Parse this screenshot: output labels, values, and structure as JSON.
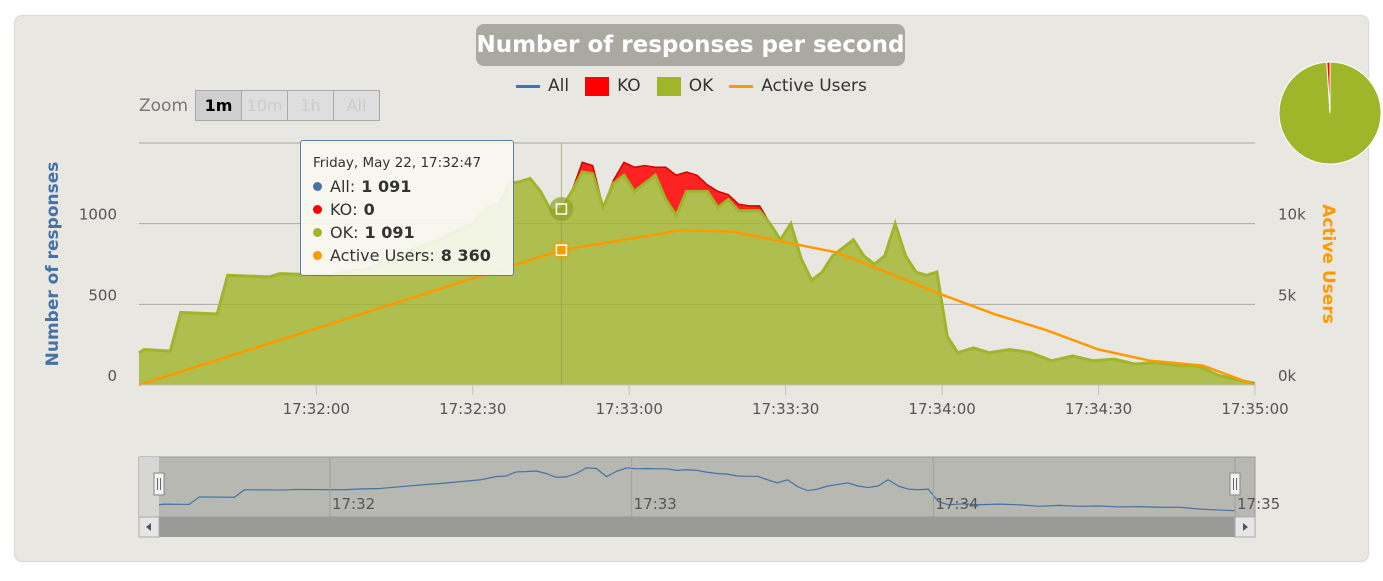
{
  "title": "Number of responses per second",
  "legend": [
    {
      "label": "All",
      "color": "#4572a7",
      "kind": "line"
    },
    {
      "label": "KO",
      "color": "#ff0000",
      "kind": "box"
    },
    {
      "label": "OK",
      "color": "#9fb52a",
      "kind": "box"
    },
    {
      "label": "Active Users",
      "color": "#ff9900",
      "kind": "line"
    }
  ],
  "zoom": {
    "label": "Zoom",
    "buttons": [
      "1m",
      "10m",
      "1h",
      "All"
    ],
    "active": "1m"
  },
  "tooltip": {
    "header": "Friday, May 22, 17:32:47",
    "rows": [
      {
        "name": "All",
        "value": "1 091",
        "color": "#4572a7"
      },
      {
        "name": "KO",
        "value": "0",
        "color": "#ff0000"
      },
      {
        "name": "OK",
        "value": "1 091",
        "color": "#9fb52a"
      },
      {
        "name": "Active Users",
        "value": "8 360",
        "color": "#ff9900"
      }
    ]
  },
  "navigator": {
    "labels": [
      "17:32",
      "17:33",
      "17:34",
      "17:35"
    ]
  },
  "colors": {
    "ok": "#9fb52a",
    "ko": "#ff0000",
    "all": "#4572a7",
    "users": "#ff9900",
    "pie_ok": "#9fb52a",
    "pie_ko": "#ff0000"
  },
  "chart_data": {
    "type": "area",
    "ylabel": "Number of responses",
    "y2label": "Active Users",
    "ylim": [
      0,
      1500
    ],
    "y2lim": [
      0,
      15000
    ],
    "yticks": [
      "0",
      "500",
      "1000"
    ],
    "y2ticks": [
      "0k",
      "5k",
      "10k"
    ],
    "xlim": [
      "17:31:26",
      "17:35:00"
    ],
    "xticks": [
      "17:32:00",
      "17:32:30",
      "17:33:00",
      "17:33:30",
      "17:34:00",
      "17:34:30",
      "17:35:00"
    ],
    "x": [
      "17:31:26",
      "17:31:27",
      "17:31:32",
      "17:31:34",
      "17:31:41",
      "17:31:43",
      "17:31:51",
      "17:31:53",
      "17:32:03",
      "17:32:05",
      "17:32:10",
      "17:32:12",
      "17:32:20",
      "17:32:22",
      "17:32:30",
      "17:32:33",
      "17:32:35",
      "17:32:37",
      "17:32:39",
      "17:32:41",
      "17:32:43",
      "17:32:45",
      "17:32:47",
      "17:32:49",
      "17:32:51",
      "17:32:53",
      "17:32:55",
      "17:32:57",
      "17:32:59",
      "17:33:01",
      "17:33:03",
      "17:33:05",
      "17:33:07",
      "17:33:09",
      "17:33:11",
      "17:33:13",
      "17:33:15",
      "17:33:17",
      "17:33:19",
      "17:33:21",
      "17:33:23",
      "17:33:25",
      "17:33:27",
      "17:33:29",
      "17:33:31",
      "17:33:33",
      "17:33:35",
      "17:33:37",
      "17:33:39",
      "17:33:41",
      "17:33:43",
      "17:33:45",
      "17:33:47",
      "17:33:49",
      "17:33:51",
      "17:33:53",
      "17:33:55",
      "17:33:57",
      "17:33:59",
      "17:34:01",
      "17:34:03",
      "17:34:06",
      "17:34:09",
      "17:34:13",
      "17:34:17",
      "17:34:21",
      "17:34:25",
      "17:34:29",
      "17:34:33",
      "17:34:37",
      "17:34:41",
      "17:34:45",
      "17:34:49",
      "17:34:53",
      "17:34:57",
      "17:35:00"
    ],
    "series": [
      {
        "name": "OK",
        "values": [
          200,
          220,
          210,
          450,
          440,
          680,
          670,
          690,
          680,
          700,
          720,
          750,
          860,
          880,
          1000,
          1100,
          1120,
          1250,
          1260,
          1280,
          1200,
          1080,
          1091,
          1200,
          1320,
          1310,
          1100,
          1250,
          1300,
          1200,
          1250,
          1300,
          1150,
          1050,
          1200,
          1200,
          1200,
          1100,
          1150,
          1080,
          1080,
          1080,
          1000,
          900,
          1000,
          780,
          650,
          700,
          800,
          850,
          900,
          800,
          750,
          800,
          1000,
          800,
          700,
          680,
          700,
          300,
          200,
          230,
          200,
          220,
          200,
          150,
          180,
          150,
          160,
          130,
          140,
          120,
          120,
          60,
          30,
          10
        ]
      },
      {
        "name": "KO",
        "values": [
          0,
          0,
          0,
          0,
          0,
          0,
          0,
          0,
          0,
          0,
          0,
          0,
          0,
          0,
          0,
          0,
          0,
          0,
          0,
          0,
          0,
          0,
          0,
          0,
          60,
          50,
          0,
          20,
          80,
          150,
          110,
          50,
          200,
          250,
          120,
          100,
          40,
          100,
          30,
          40,
          30,
          30,
          0,
          0,
          0,
          0,
          0,
          0,
          0,
          0,
          0,
          0,
          0,
          0,
          0,
          0,
          0,
          0,
          0,
          0,
          0,
          0,
          0,
          0,
          0,
          0,
          0,
          0,
          0,
          0,
          0,
          0,
          0,
          0,
          0,
          0
        ]
      },
      {
        "name": "Active Users",
        "x": [
          "17:31:26",
          "17:32:47",
          "17:33:10",
          "17:33:20",
          "17:33:40",
          "17:34:00",
          "17:34:10",
          "17:34:20",
          "17:34:30",
          "17:34:40",
          "17:34:50",
          "17:35:00"
        ],
        "values": [
          0,
          8360,
          9600,
          9500,
          8200,
          5600,
          4400,
          3400,
          2200,
          1500,
          1200,
          0
        ]
      }
    ],
    "pie": [
      {
        "name": "OK",
        "value": 99
      },
      {
        "name": "KO",
        "value": 1
      }
    ]
  }
}
